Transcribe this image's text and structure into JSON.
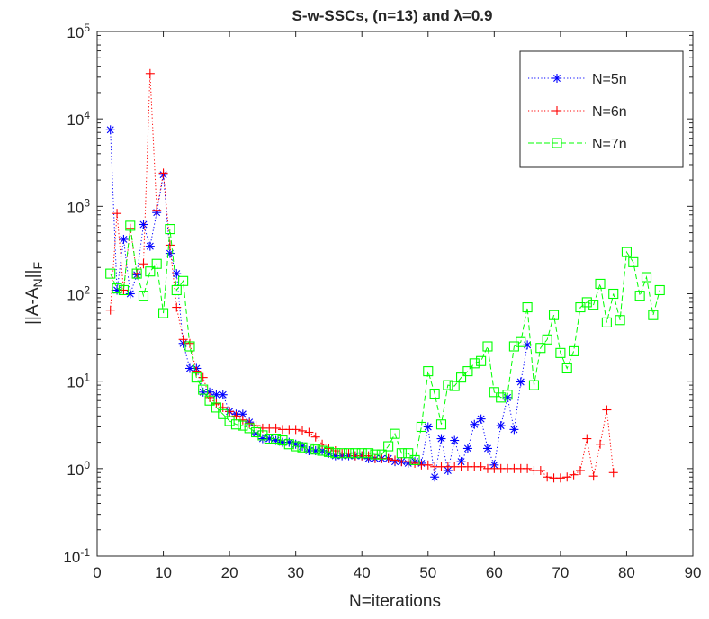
{
  "chart_data": {
    "type": "line",
    "title": "S-w-SSCs, (n=13) and λ=0.9",
    "xlabel": "N=iterations",
    "ylabel": "||A-A_N||_F",
    "xlim": [
      0,
      90
    ],
    "ylim": [
      0.1,
      100000
    ],
    "yscale": "log",
    "grid": false,
    "legend_position": "top-right",
    "x_ticks": [
      "0",
      "10",
      "20",
      "30",
      "40",
      "50",
      "60",
      "70",
      "80",
      "90"
    ],
    "y_ticks": [
      {
        "base": "10",
        "exp": "-1"
      },
      {
        "base": "10",
        "exp": "0"
      },
      {
        "base": "10",
        "exp": "1"
      },
      {
        "base": "10",
        "exp": "2"
      },
      {
        "base": "10",
        "exp": "3"
      },
      {
        "base": "10",
        "exp": "4"
      },
      {
        "base": "10",
        "exp": "5"
      }
    ],
    "series": [
      {
        "name": "N=5n",
        "color": "#0000ff",
        "marker": "asterisk",
        "line_style": "dotted",
        "x": [
          2,
          3,
          4,
          5,
          6,
          7,
          8,
          9,
          10,
          11,
          12,
          13,
          14,
          15,
          16,
          17,
          18,
          19,
          20,
          21,
          22,
          23,
          24,
          25,
          26,
          27,
          28,
          29,
          30,
          31,
          32,
          33,
          34,
          35,
          36,
          37,
          38,
          39,
          40,
          41,
          42,
          43,
          44,
          45,
          46,
          47,
          48,
          49,
          50,
          51,
          52,
          53,
          54,
          55,
          56,
          57,
          58,
          59,
          60,
          61,
          62,
          63,
          64,
          65
        ],
        "y": [
          7500,
          110,
          420,
          100,
          165,
          620,
          350,
          850,
          2300,
          290,
          170,
          27,
          14,
          14,
          7.5,
          7.5,
          7,
          7,
          4.5,
          4.2,
          4.2,
          3.4,
          2.5,
          2.2,
          2.2,
          2.1,
          2,
          2,
          1.9,
          1.8,
          1.6,
          1.6,
          1.6,
          1.5,
          1.4,
          1.4,
          1.4,
          1.4,
          1.4,
          1.3,
          1.3,
          1.3,
          1.3,
          1.2,
          1.2,
          1.15,
          1.2,
          1.15,
          3,
          0.8,
          2.2,
          0.95,
          2.1,
          1.2,
          1.7,
          3.2,
          3.7,
          1.7,
          1.1,
          3.1,
          6.5,
          2.8,
          9.8,
          26
        ]
      },
      {
        "name": "N=6n",
        "color": "#ff0000",
        "marker": "plus",
        "line_style": "dotted",
        "x": [
          2,
          3,
          4,
          5,
          6,
          7,
          8,
          9,
          10,
          11,
          12,
          13,
          14,
          15,
          16,
          17,
          18,
          19,
          20,
          21,
          22,
          23,
          24,
          25,
          26,
          27,
          28,
          29,
          30,
          31,
          32,
          33,
          34,
          35,
          36,
          37,
          38,
          39,
          40,
          41,
          42,
          43,
          44,
          45,
          46,
          47,
          48,
          49,
          50,
          51,
          52,
          53,
          54,
          55,
          56,
          57,
          58,
          59,
          60,
          61,
          62,
          63,
          64,
          65,
          66,
          67,
          68,
          69,
          70,
          71,
          72,
          73,
          74,
          75,
          76,
          77,
          78
        ],
        "y": [
          65,
          830,
          110,
          560,
          170,
          220,
          33000,
          900,
          2400,
          360,
          70,
          30,
          27,
          13,
          11,
          6.5,
          5.5,
          5,
          4.5,
          4,
          3.6,
          3.3,
          3.1,
          2.9,
          2.9,
          2.9,
          2.8,
          2.8,
          2.8,
          2.7,
          2.6,
          2.3,
          1.9,
          1.7,
          1.6,
          1.5,
          1.5,
          1.4,
          1.4,
          1.4,
          1.3,
          1.3,
          1.3,
          1.25,
          1.2,
          1.2,
          1.15,
          1.1,
          1.1,
          1.05,
          1.05,
          1.05,
          1.05,
          1.05,
          1.05,
          1.05,
          1.05,
          1.0,
          1.0,
          1.0,
          1.0,
          1.0,
          1.0,
          1.0,
          0.95,
          0.95,
          0.8,
          0.78,
          0.78,
          0.8,
          0.85,
          0.95,
          2.2,
          0.82,
          1.9,
          4.7,
          0.9
        ]
      },
      {
        "name": "N=7n",
        "color": "#00ff00",
        "marker": "square",
        "line_style": "dashed",
        "x": [
          2,
          3,
          4,
          5,
          6,
          7,
          8,
          9,
          10,
          11,
          12,
          13,
          14,
          15,
          16,
          17,
          18,
          19,
          20,
          21,
          22,
          23,
          24,
          25,
          26,
          27,
          28,
          29,
          30,
          31,
          32,
          33,
          34,
          35,
          36,
          37,
          38,
          39,
          40,
          41,
          42,
          43,
          44,
          45,
          46,
          47,
          48,
          49,
          50,
          51,
          52,
          53,
          54,
          55,
          56,
          57,
          58,
          59,
          60,
          61,
          62,
          63,
          64,
          65,
          66,
          67,
          68,
          69,
          70,
          71,
          72,
          73,
          74,
          75,
          76,
          77,
          78,
          79,
          80,
          81,
          82,
          83,
          84,
          85
        ],
        "y": [
          170,
          115,
          110,
          600,
          170,
          95,
          180,
          220,
          60,
          550,
          110,
          140,
          25,
          11,
          8,
          6,
          5,
          4.2,
          3.5,
          3.2,
          3.1,
          2.9,
          2.6,
          2.4,
          2.2,
          2.2,
          2.1,
          1.9,
          1.8,
          1.75,
          1.7,
          1.65,
          1.6,
          1.55,
          1.5,
          1.5,
          1.5,
          1.5,
          1.5,
          1.5,
          1.45,
          1.45,
          1.8,
          2.5,
          1.5,
          1.5,
          1.25,
          3,
          13,
          7.2,
          3.2,
          9,
          8.8,
          11,
          13,
          16,
          17,
          25,
          7.5,
          6.5,
          7,
          25,
          28,
          70,
          9,
          24,
          30,
          57,
          21,
          14,
          22,
          70,
          80,
          75,
          130,
          47,
          100,
          50,
          300,
          230,
          95,
          155,
          57,
          110
        ]
      }
    ]
  }
}
